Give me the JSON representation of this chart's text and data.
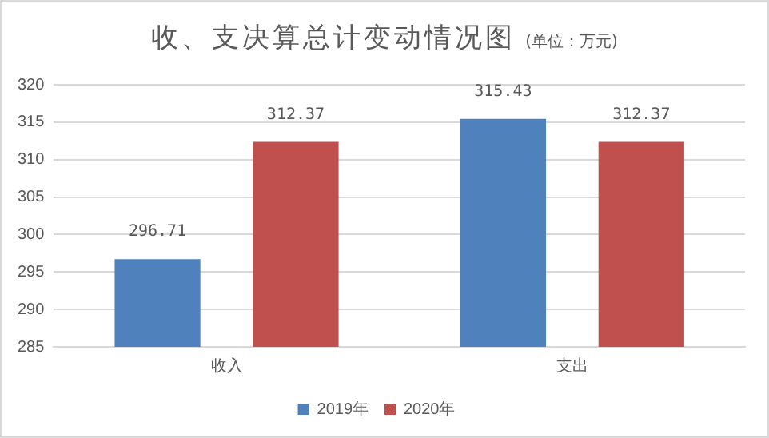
{
  "chart_data": {
    "type": "bar",
    "title": "收、支决算总计变动情况图",
    "subtitle": "(单位：万元)",
    "categories": [
      "收入",
      "支出"
    ],
    "series": [
      {
        "name": "2019年",
        "color": "#4f81bd",
        "values": [
          296.71,
          315.43
        ]
      },
      {
        "name": "2020年",
        "color": "#c0504d",
        "values": [
          312.37,
          312.37
        ]
      }
    ],
    "ylim": [
      285,
      320
    ],
    "yticks": [
      285,
      290,
      295,
      300,
      305,
      310,
      315,
      320
    ],
    "grid": "y",
    "legend": "bottom",
    "data_labels": true
  }
}
